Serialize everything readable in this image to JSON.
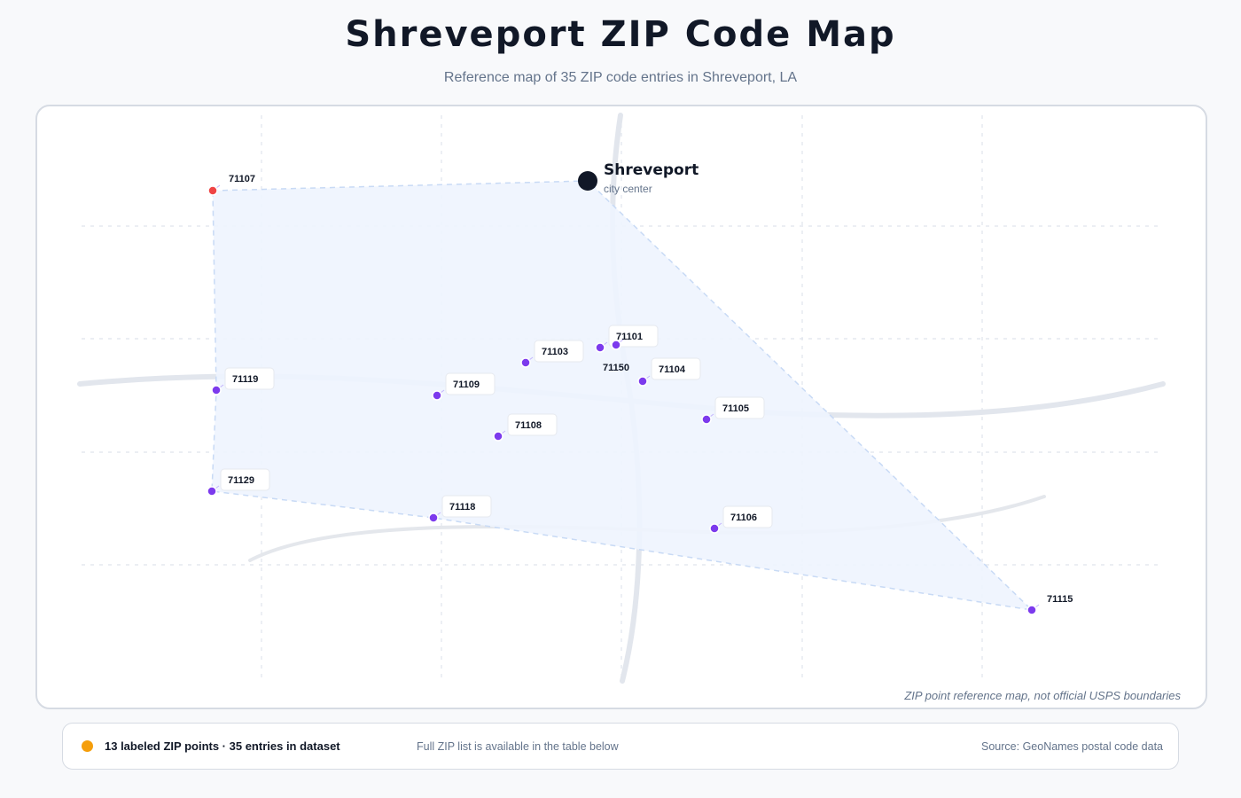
{
  "title": "Shreveport ZIP Code Map",
  "subtitle": "Reference map of 35 ZIP code entries in Shreveport, LA",
  "map": {
    "city_marker": {
      "name": "Shreveport",
      "caption": "city center",
      "icon": "city-center-icon"
    },
    "note": "ZIP point reference map, not official USPS boundaries",
    "zip_points": [
      {
        "zip": "71107",
        "status": "highlighted"
      },
      {
        "zip": "71119",
        "status": "normal"
      },
      {
        "zip": "71109",
        "status": "normal"
      },
      {
        "zip": "71103",
        "status": "normal"
      },
      {
        "zip": "71101",
        "status": "normal"
      },
      {
        "zip": "71150",
        "status": "normal"
      },
      {
        "zip": "71104",
        "status": "normal"
      },
      {
        "zip": "71108",
        "status": "normal"
      },
      {
        "zip": "71105",
        "status": "normal"
      },
      {
        "zip": "71129",
        "status": "normal"
      },
      {
        "zip": "71118",
        "status": "normal"
      },
      {
        "zip": "71106",
        "status": "normal"
      },
      {
        "zip": "71115",
        "status": "normal"
      }
    ]
  },
  "footer": {
    "legend_label": "13 labeled ZIP points · 35 entries in dataset",
    "note": "Full ZIP list is available in the table below",
    "source": "Source: GeoNames postal code data"
  },
  "colors": {
    "point": "#7c3aed",
    "highlight_point": "#ef4444",
    "legend_dot": "#f59e0b",
    "hull_fill": "#eef4fe",
    "city_marker": "#111827"
  }
}
